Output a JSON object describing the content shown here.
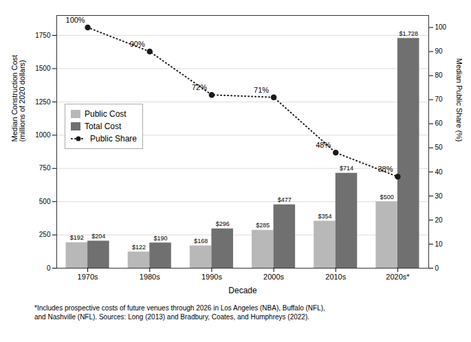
{
  "chart_data": {
    "type": "bar",
    "categories": [
      "1970s",
      "1980s",
      "1990s",
      "2000s",
      "2010s",
      "2020s*"
    ],
    "series": [
      {
        "name": "Public Cost",
        "color": "#b8b8b8",
        "values": [
          192,
          122,
          168,
          285,
          354,
          500
        ],
        "value_labels": [
          "$192",
          "$122",
          "$168",
          "$285",
          "$354",
          "$500"
        ]
      },
      {
        "name": "Total Cost",
        "color": "#707070",
        "values": [
          204,
          190,
          296,
          477,
          714,
          1728
        ],
        "value_labels": [
          "$204",
          "$190",
          "$296",
          "$477",
          "$714",
          "$1,728"
        ]
      },
      {
        "name": "Public Share",
        "type": "line",
        "axis": "y2",
        "color": "#1a1a1a",
        "marker": "circle",
        "line_style": "dotted",
        "values": [
          100,
          90,
          72,
          71,
          48,
          38
        ],
        "value_labels": [
          "100%",
          "90%",
          "72%",
          "71%",
          "48%",
          "38%"
        ]
      }
    ],
    "xlabel": "Decade",
    "ylabel": "Median Construction Cost\n(millions of 2020 dollars)",
    "y2label": "Median Public Share (%)",
    "ylim": [
      0,
      1900
    ],
    "yticks": [
      0,
      250,
      500,
      750,
      1000,
      1250,
      1500,
      1750
    ],
    "y2lim": [
      0,
      105
    ],
    "y2ticks": [
      0,
      10,
      20,
      30,
      40,
      50,
      60,
      70,
      80,
      90,
      100
    ],
    "grid": true,
    "legend": "upper left",
    "data_labels": true,
    "footnote": "*Includes prospective costs of future venues through 2026 in Los Angeles (NBA), Buffalo (NFL),\nand Nashville (NFL). Sources: Long (2013) and Bradbury, Coates, and Humphreys (2022)."
  }
}
